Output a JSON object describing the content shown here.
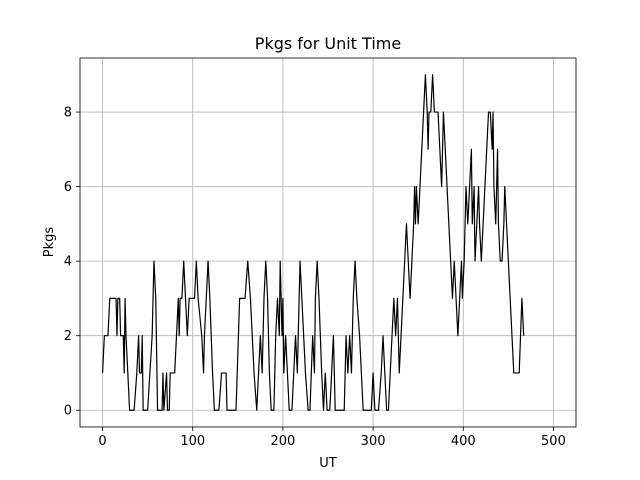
{
  "chart_data": {
    "type": "line",
    "title": "Pkgs for Unit Time",
    "xlabel": "UT",
    "ylabel": "Pkgs",
    "xlim": [
      -25,
      525
    ],
    "ylim": [
      -0.45,
      9.45
    ],
    "xticks": [
      0,
      100,
      200,
      300,
      400,
      500
    ],
    "yticks": [
      0,
      2,
      4,
      6,
      8
    ],
    "grid": true,
    "legend": "none",
    "colors": {
      "line": "#000000",
      "grid": "#b0b0b0",
      "background": "#ffffff"
    },
    "series": [
      {
        "points": [
          [
            0,
            1
          ],
          [
            2,
            2
          ],
          [
            6,
            2
          ],
          [
            8,
            3
          ],
          [
            15,
            3
          ],
          [
            16,
            2
          ],
          [
            17,
            3
          ],
          [
            19,
            3
          ],
          [
            20,
            2
          ],
          [
            23,
            2
          ],
          [
            24,
            1
          ],
          [
            25,
            3
          ],
          [
            26,
            2
          ],
          [
            28,
            1
          ],
          [
            30,
            0
          ],
          [
            35,
            0
          ],
          [
            38,
            1
          ],
          [
            40,
            2
          ],
          [
            41,
            1
          ],
          [
            43,
            1
          ],
          [
            44,
            2
          ],
          [
            45,
            0
          ],
          [
            50,
            0
          ],
          [
            55,
            2
          ],
          [
            57,
            4
          ],
          [
            59,
            3
          ],
          [
            61,
            0
          ],
          [
            66,
            0
          ],
          [
            67,
            1
          ],
          [
            68,
            0
          ],
          [
            71,
            1
          ],
          [
            72,
            0
          ],
          [
            74,
            0
          ],
          [
            75,
            1
          ],
          [
            80,
            1
          ],
          [
            84,
            3
          ],
          [
            85,
            2
          ],
          [
            86,
            3
          ],
          [
            88,
            3
          ],
          [
            90,
            4
          ],
          [
            92,
            3
          ],
          [
            94,
            2
          ],
          [
            96,
            3
          ],
          [
            102,
            3
          ],
          [
            104,
            4
          ],
          [
            106,
            3
          ],
          [
            110,
            2
          ],
          [
            112,
            1
          ],
          [
            113,
            2
          ],
          [
            115,
            3
          ],
          [
            117,
            4
          ],
          [
            119,
            3
          ],
          [
            122,
            1
          ],
          [
            124,
            0
          ],
          [
            129,
            0
          ],
          [
            132,
            1
          ],
          [
            137,
            1
          ],
          [
            138,
            0
          ],
          [
            148,
            0
          ],
          [
            152,
            3
          ],
          [
            158,
            3
          ],
          [
            161,
            4
          ],
          [
            164,
            3
          ],
          [
            166,
            2
          ],
          [
            168,
            1
          ],
          [
            171,
            0
          ],
          [
            173,
            1
          ],
          [
            175,
            2
          ],
          [
            177,
            1
          ],
          [
            179,
            3
          ],
          [
            181,
            4
          ],
          [
            183,
            3
          ],
          [
            185,
            1
          ],
          [
            187,
            0
          ],
          [
            190,
            0
          ],
          [
            192,
            2
          ],
          [
            194,
            3
          ],
          [
            196,
            2
          ],
          [
            197,
            4
          ],
          [
            199,
            2
          ],
          [
            200,
            3
          ],
          [
            201,
            1
          ],
          [
            203,
            2
          ],
          [
            205,
            1
          ],
          [
            207,
            0
          ],
          [
            210,
            0
          ],
          [
            214,
            2
          ],
          [
            216,
            1
          ],
          [
            218,
            3
          ],
          [
            219,
            4
          ],
          [
            221,
            3
          ],
          [
            223,
            2
          ],
          [
            225,
            1
          ],
          [
            228,
            0
          ],
          [
            230,
            0
          ],
          [
            233,
            2
          ],
          [
            235,
            1
          ],
          [
            236,
            3
          ],
          [
            238,
            4
          ],
          [
            240,
            3
          ],
          [
            243,
            1
          ],
          [
            245,
            0
          ],
          [
            247,
            1
          ],
          [
            249,
            0
          ],
          [
            252,
            0
          ],
          [
            254,
            1
          ],
          [
            256,
            2
          ],
          [
            258,
            0
          ],
          [
            268,
            0
          ],
          [
            270,
            2
          ],
          [
            272,
            1
          ],
          [
            274,
            2
          ],
          [
            276,
            1
          ],
          [
            278,
            3
          ],
          [
            280,
            4
          ],
          [
            282,
            3
          ],
          [
            285,
            2
          ],
          [
            287,
            1
          ],
          [
            289,
            0
          ],
          [
            298,
            0
          ],
          [
            300,
            1
          ],
          [
            302,
            0
          ],
          [
            306,
            0
          ],
          [
            309,
            1
          ],
          [
            311,
            2
          ],
          [
            313,
            1
          ],
          [
            315,
            0
          ],
          [
            317,
            0
          ],
          [
            319,
            1
          ],
          [
            321,
            2
          ],
          [
            323,
            3
          ],
          [
            325,
            2
          ],
          [
            327,
            3
          ],
          [
            329,
            1
          ],
          [
            331,
            2
          ],
          [
            333,
            3
          ],
          [
            335,
            4
          ],
          [
            337,
            5
          ],
          [
            339,
            4
          ],
          [
            341,
            3
          ],
          [
            343,
            4
          ],
          [
            345,
            5
          ],
          [
            346,
            6
          ],
          [
            347,
            5
          ],
          [
            348,
            6
          ],
          [
            350,
            5
          ],
          [
            352,
            6
          ],
          [
            354,
            7
          ],
          [
            356,
            8
          ],
          [
            358,
            9
          ],
          [
            360,
            8
          ],
          [
            361,
            7
          ],
          [
            362,
            8
          ],
          [
            364,
            8
          ],
          [
            366,
            9
          ],
          [
            368,
            8
          ],
          [
            372,
            8
          ],
          [
            374,
            7
          ],
          [
            376,
            6
          ],
          [
            377,
            7
          ],
          [
            378,
            8
          ],
          [
            380,
            7
          ],
          [
            382,
            6
          ],
          [
            384,
            5
          ],
          [
            386,
            4
          ],
          [
            388,
            3
          ],
          [
            390,
            4
          ],
          [
            392,
            3
          ],
          [
            394,
            2
          ],
          [
            396,
            3
          ],
          [
            398,
            4
          ],
          [
            399,
            3
          ],
          [
            401,
            4
          ],
          [
            403,
            6
          ],
          [
            405,
            5
          ],
          [
            407,
            6
          ],
          [
            409,
            7
          ],
          [
            410,
            5
          ],
          [
            412,
            6
          ],
          [
            413,
            4
          ],
          [
            415,
            5
          ],
          [
            417,
            6
          ],
          [
            418,
            5
          ],
          [
            420,
            4
          ],
          [
            422,
            5
          ],
          [
            424,
            6
          ],
          [
            426,
            7
          ],
          [
            428,
            8
          ],
          [
            430,
            8
          ],
          [
            432,
            7
          ],
          [
            433,
            8
          ],
          [
            434,
            6
          ],
          [
            436,
            5
          ],
          [
            437,
            6
          ],
          [
            438,
            7
          ],
          [
            439,
            5
          ],
          [
            441,
            4
          ],
          [
            443,
            4
          ],
          [
            445,
            5
          ],
          [
            446,
            6
          ],
          [
            448,
            5
          ],
          [
            450,
            4
          ],
          [
            452,
            3
          ],
          [
            454,
            2
          ],
          [
            456,
            1
          ],
          [
            462,
            1
          ],
          [
            465,
            3
          ],
          [
            467,
            2
          ]
        ]
      }
    ]
  }
}
